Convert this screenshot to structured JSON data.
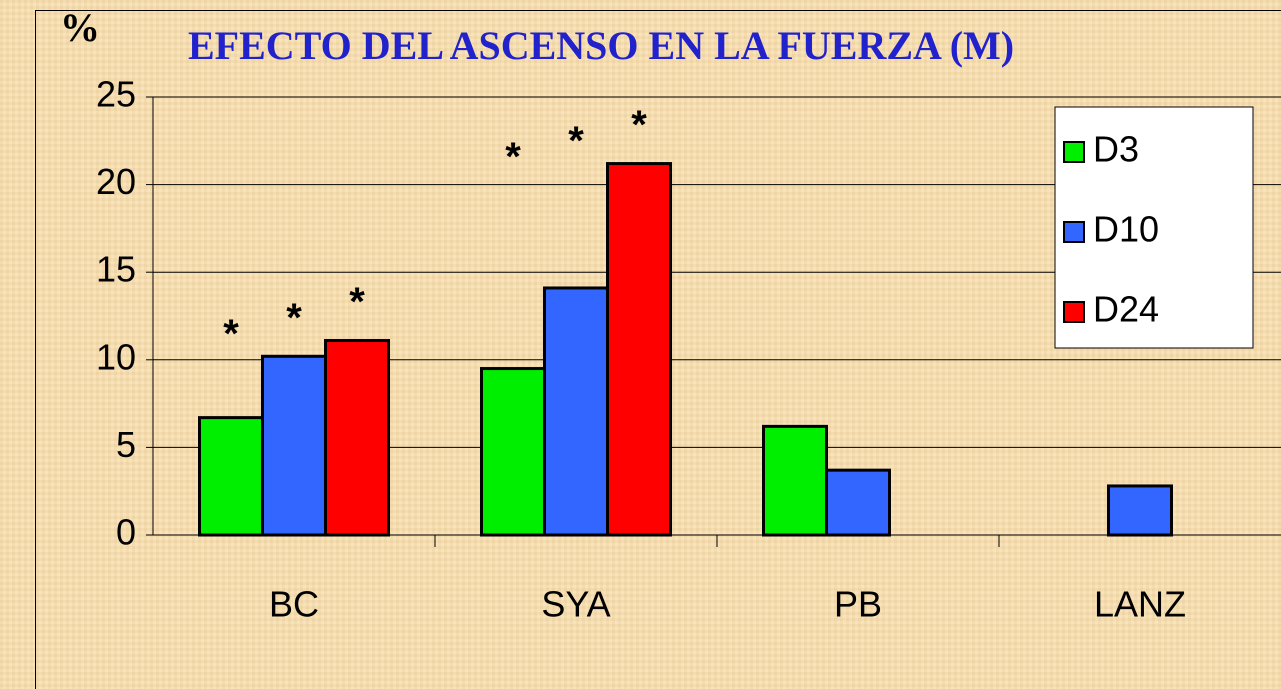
{
  "chart_data": {
    "type": "bar",
    "title": "EFECTO DEL ASCENSO EN LA FUERZA (M)",
    "y_label": "%",
    "categories": [
      "BC",
      "SYA",
      "PB",
      "LANZ"
    ],
    "series": [
      {
        "name": "D3",
        "color": "#00ee00",
        "values": [
          6.7,
          9.5,
          6.2,
          null
        ],
        "marks": [
          "*",
          "*",
          null,
          null
        ]
      },
      {
        "name": "D10",
        "color": "#3366ff",
        "values": [
          10.2,
          14.1,
          3.7,
          2.8
        ],
        "marks": [
          "*",
          "*",
          null,
          null
        ]
      },
      {
        "name": "D24",
        "color": "#ff0000",
        "values": [
          11.1,
          21.2,
          null,
          null
        ],
        "marks": [
          "*",
          "*",
          null,
          null
        ]
      }
    ],
    "ylim": [
      0,
      25
    ],
    "yticks": [
      0,
      5,
      10,
      15,
      20,
      25
    ],
    "grid": true,
    "legend": "top-right"
  }
}
